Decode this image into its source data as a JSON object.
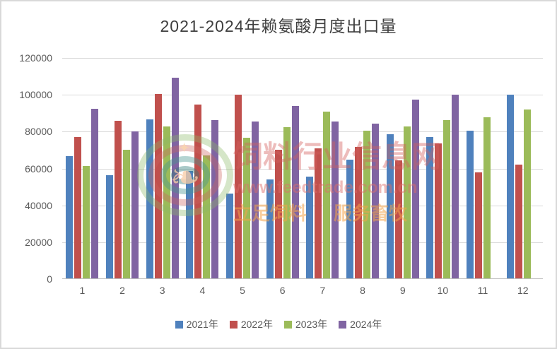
{
  "title": "2021-2024年赖氨酸月度出口量",
  "chart_data": {
    "type": "bar",
    "title": "2021-2024年赖氨酸月度出口量",
    "categories": [
      "1",
      "2",
      "3",
      "4",
      "5",
      "6",
      "7",
      "8",
      "9",
      "10",
      "11",
      "12"
    ],
    "series": [
      {
        "name": "2021年",
        "color": "#4F81BD",
        "values": [
          66500,
          56100,
          86400,
          58300,
          46200,
          53500,
          55400,
          64600,
          78200,
          76500,
          80100,
          99600
        ]
      },
      {
        "name": "2022年",
        "color": "#C0504D",
        "values": [
          76800,
          85500,
          100000,
          94200,
          99800,
          69900,
          70500,
          71400,
          64000,
          73400,
          57500,
          61600
        ]
      },
      {
        "name": "2023年",
        "color": "#9BBB59",
        "values": [
          61000,
          69700,
          82300,
          66900,
          76300,
          82000,
          90300,
          80300,
          82400,
          85900,
          87400,
          91700
        ]
      },
      {
        "name": "2024年",
        "color": "#8064A2",
        "values": [
          92100,
          79600,
          108900,
          85900,
          85200,
          93600,
          85100,
          83900,
          97100,
          99500,
          null,
          null
        ]
      }
    ],
    "ylim": [
      0,
      120000
    ],
    "ytick_interval": 20000,
    "ytick_labels": [
      "120000",
      "100000",
      "80000",
      "60000",
      "40000",
      "20000",
      "0"
    ],
    "xlabel": "",
    "ylabel": "",
    "grid": true,
    "legend_position": "bottom"
  },
  "axis_style": {
    "text_color": "#595959",
    "grid_color": "#D9D9D9",
    "axis_line_color": "#BFBFBF"
  },
  "watermark": {
    "site_name": "饲料行业信息网",
    "site_url": "www.feedtrade.com.cn",
    "slogan_left": "立足饲料",
    "slogan_right": "服务畜牧",
    "logo_star": "✦",
    "logo_book": "❧"
  }
}
